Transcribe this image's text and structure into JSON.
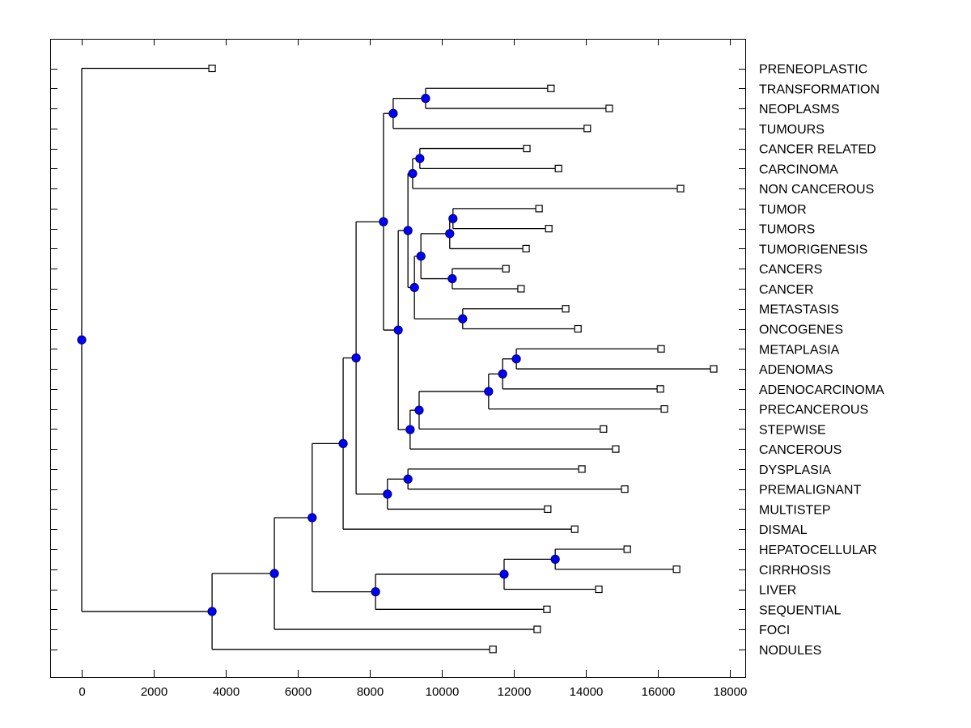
{
  "chart_data": {
    "type": "dendrogram",
    "title": "",
    "xlabel": "",
    "ylabel": "",
    "xlim": [
      -876,
      18450
    ],
    "x_ticks": [
      0,
      2000,
      4000,
      6000,
      8000,
      10000,
      12000,
      14000,
      16000,
      18000
    ],
    "x_tick_labels": [
      "0",
      "2000",
      "4000",
      "6000",
      "8000",
      "10000",
      "12000",
      "14000",
      "16000",
      "18000"
    ],
    "grid": false,
    "label_side": "right",
    "colors": {
      "node_fill": "#0000ff",
      "line": "#000000",
      "leaf_fill": "#ffffff"
    },
    "leaves": [
      {
        "label": "PRENEOPLASTIC",
        "value": 3620
      },
      {
        "label": "TRANSFORMATION",
        "value": 13030
      },
      {
        "label": "NEOPLASMS",
        "value": 14650
      },
      {
        "label": "TUMOURS",
        "value": 14040
      },
      {
        "label": "CANCER RELATED",
        "value": 12360
      },
      {
        "label": "CARCINOMA",
        "value": 13240
      },
      {
        "label": "NON CANCEROUS",
        "value": 16630
      },
      {
        "label": "TUMOR",
        "value": 12700
      },
      {
        "label": "TUMORS",
        "value": 12970
      },
      {
        "label": "TUMORIGENESIS",
        "value": 12340
      },
      {
        "label": "CANCERS",
        "value": 11780
      },
      {
        "label": "CANCER",
        "value": 12200
      },
      {
        "label": "METASTASIS",
        "value": 13440
      },
      {
        "label": "ONCOGENES",
        "value": 13780
      },
      {
        "label": "METAPLASIA",
        "value": 16090
      },
      {
        "label": "ADENOMAS",
        "value": 17550
      },
      {
        "label": "ADENOCARCINOMA",
        "value": 16070
      },
      {
        "label": "PRECANCEROUS",
        "value": 16180
      },
      {
        "label": "STEPWISE",
        "value": 14490
      },
      {
        "label": "CANCEROUS",
        "value": 14830
      },
      {
        "label": "DYSPLASIA",
        "value": 13890
      },
      {
        "label": "PREMALIGNANT",
        "value": 15080
      },
      {
        "label": "MULTISTEP",
        "value": 12940
      },
      {
        "label": "DISMAL",
        "value": 13690
      },
      {
        "label": "HEPATOCELLULAR",
        "value": 15150
      },
      {
        "label": "CIRRHOSIS",
        "value": 16520
      },
      {
        "label": "LIVER",
        "value": 14360
      },
      {
        "label": "SEQUENTIAL",
        "value": 12920
      },
      {
        "label": "FOCI",
        "value": 12650
      },
      {
        "label": "NODULES",
        "value": 11420
      }
    ],
    "tree": {
      "value": 0,
      "children": [
        {
          "leaf": 0
        },
        {
          "value": 3620,
          "children": [
            {
              "value": 5350,
              "children": [
                {
                  "value": 6400,
                  "children": [
                    {
                      "value": 7260,
                      "children": [
                        {
                          "value": 7620,
                          "children": [
                            {
                              "value": 8380,
                              "children": [
                                {
                                  "value": 8650,
                                  "children": [
                                    {
                                      "value": 9550,
                                      "children": [
                                        {
                                          "leaf": 1
                                        },
                                        {
                                          "leaf": 2
                                        }
                                      ]
                                    },
                                    {
                                      "leaf": 3
                                    }
                                  ]
                                },
                                {
                                  "value": 8790,
                                  "children": [
                                    {
                                      "value": 9060,
                                      "children": [
                                        {
                                          "value": 9190,
                                          "children": [
                                            {
                                              "value": 9390,
                                              "children": [
                                                {
                                                  "leaf": 4
                                                },
                                                {
                                                  "leaf": 5
                                                }
                                              ]
                                            },
                                            {
                                              "leaf": 6
                                            }
                                          ]
                                        },
                                        {
                                          "value": 9240,
                                          "children": [
                                            {
                                              "value": 9420,
                                              "children": [
                                                {
                                                  "value": 10220,
                                                  "children": [
                                                    {
                                                      "value": 10310,
                                                      "children": [
                                                        {
                                                          "leaf": 7
                                                        },
                                                        {
                                                          "leaf": 8
                                                        }
                                                      ]
                                                    },
                                                    {
                                                      "leaf": 9
                                                    }
                                                  ]
                                                },
                                                {
                                                  "value": 10290,
                                                  "children": [
                                                    {
                                                      "leaf": 10
                                                    },
                                                    {
                                                      "leaf": 11
                                                    }
                                                  ]
                                                }
                                              ]
                                            },
                                            {
                                              "value": 10580,
                                              "children": [
                                                {
                                                  "leaf": 12
                                                },
                                                {
                                                  "leaf": 13
                                                }
                                              ]
                                            }
                                          ]
                                        }
                                      ]
                                    },
                                    {
                                      "value": 9120,
                                      "children": [
                                        {
                                          "value": 9370,
                                          "children": [
                                            {
                                              "value": 11300,
                                              "children": [
                                                {
                                                  "value": 11690,
                                                  "children": [
                                                    {
                                                      "value": 12070,
                                                      "children": [
                                                        {
                                                          "leaf": 14
                                                        },
                                                        {
                                                          "leaf": 15
                                                        }
                                                      ]
                                                    },
                                                    {
                                                      "leaf": 16
                                                    }
                                                  ]
                                                },
                                                {
                                                  "leaf": 17
                                                }
                                              ]
                                            },
                                            {
                                              "leaf": 18
                                            }
                                          ]
                                        },
                                        {
                                          "leaf": 19
                                        }
                                      ]
                                    }
                                  ]
                                }
                              ]
                            },
                            {
                              "value": 8490,
                              "children": [
                                {
                                  "value": 9060,
                                  "children": [
                                    {
                                      "leaf": 20
                                    },
                                    {
                                      "leaf": 21
                                    }
                                  ]
                                },
                                {
                                  "leaf": 22
                                }
                              ]
                            }
                          ]
                        },
                        {
                          "leaf": 23
                        }
                      ]
                    },
                    {
                      "value": 8160,
                      "children": [
                        {
                          "value": 11730,
                          "children": [
                            {
                              "value": 13150,
                              "children": [
                                {
                                  "leaf": 24
                                },
                                {
                                  "leaf": 25
                                }
                              ]
                            },
                            {
                              "leaf": 26
                            }
                          ]
                        },
                        {
                          "leaf": 27
                        }
                      ]
                    }
                  ]
                },
                {
                  "leaf": 28
                }
              ]
            },
            {
              "leaf": 29
            }
          ]
        }
      ]
    }
  }
}
